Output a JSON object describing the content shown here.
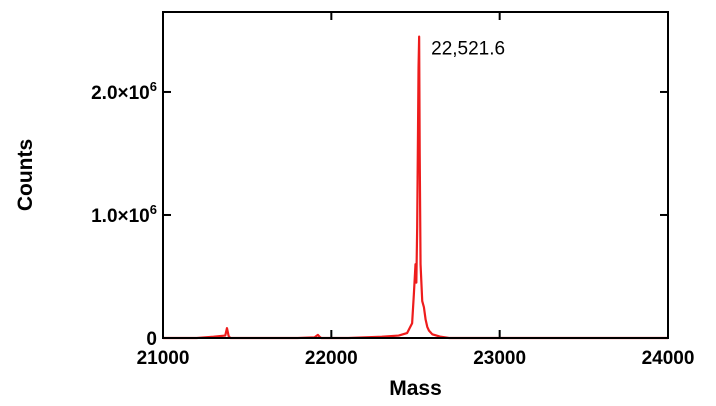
{
  "chart_data": {
    "type": "line",
    "title": "",
    "xlabel": "Mass",
    "ylabel": "Counts",
    "xlim": [
      21000,
      24000
    ],
    "ylim": [
      0,
      2650000
    ],
    "x_ticks": [
      21000,
      22000,
      23000,
      24000
    ],
    "x_tick_labels": [
      "21000",
      "22000",
      "23000",
      "24000"
    ],
    "y_ticks": [
      0,
      1000000,
      2000000
    ],
    "y_tick_labels": [
      {
        "base": "0",
        "exp": ""
      },
      {
        "base": "1.0×10",
        "exp": "6"
      },
      {
        "base": "2.0×10",
        "exp": "6"
      }
    ],
    "grid": false,
    "legend": "none",
    "colors": {
      "series": "#ee1c1c",
      "axes": "#000000"
    },
    "series": [
      {
        "x": [
          21000,
          21100,
          21200,
          21300,
          21370,
          21380,
          21390,
          21400,
          21500,
          21600,
          21700,
          21800,
          21900,
          21920,
          21930,
          21940,
          22000,
          22100,
          22200,
          22300,
          22400,
          22450,
          22480,
          22490,
          22500,
          22505,
          22510,
          22515,
          22518,
          22521.6,
          22525,
          22530,
          22540,
          22550,
          22560,
          22570,
          22580,
          22600,
          22650,
          22700,
          22800,
          22900,
          23000,
          23200,
          23400,
          23600,
          23800,
          24000
        ],
        "y": [
          0,
          0,
          0,
          10000,
          20000,
          80000,
          15000,
          0,
          0,
          0,
          0,
          0,
          5000,
          25000,
          10000,
          0,
          0,
          0,
          5000,
          10000,
          20000,
          40000,
          120000,
          350000,
          600000,
          450000,
          900000,
          1700000,
          2200000,
          2450000,
          1500000,
          600000,
          300000,
          250000,
          150000,
          90000,
          60000,
          30000,
          10000,
          0,
          0,
          0,
          0,
          0,
          0,
          0,
          0,
          0
        ]
      }
    ],
    "annotations": [
      {
        "text": "22,521.6",
        "x": 22521.6,
        "y": 2450000
      }
    ]
  }
}
